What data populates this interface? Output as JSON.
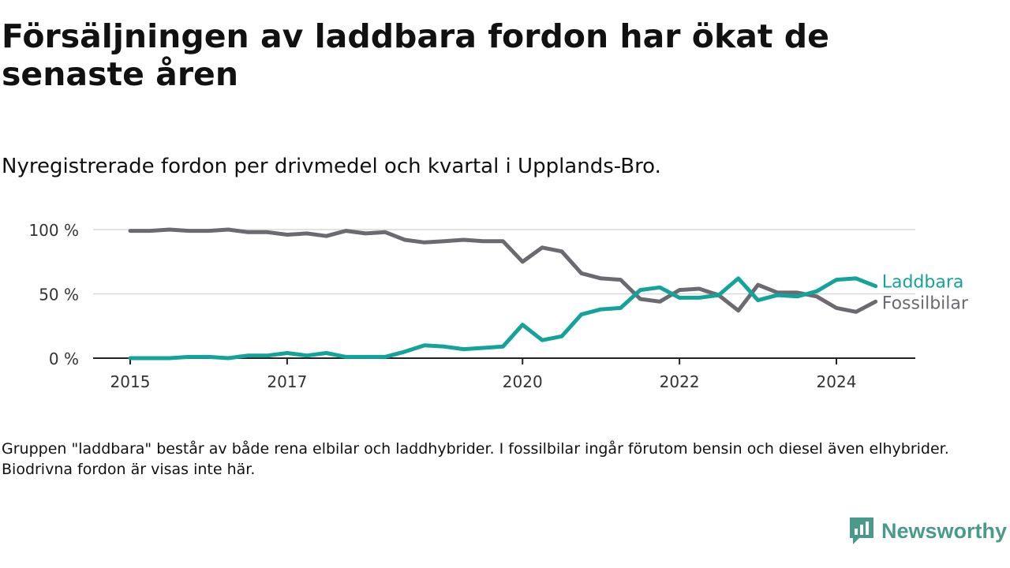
{
  "title": "Försäljningen av laddbara fordon har ökat de senaste åren",
  "subtitle": "Nyregistrerade fordon per drivmedel och kvartal i Upplands-Bro.",
  "footnote": "Gruppen \"laddbara\" består av både rena elbilar och laddhybrider. I fossilbilar ingår förutom bensin och diesel även elhybrider. Biodrivna fordon är visas inte här.",
  "brand": {
    "name": "Newsworthy",
    "logo_icon": "newsworthy-logo-icon"
  },
  "colors": {
    "laddbara": "#14a39a",
    "fossilbilar": "#6b6a70",
    "grid": "#d9d9d9",
    "axis": "#222222",
    "brand": "#4a9a8c"
  },
  "chart_data": {
    "type": "line",
    "title": "Försäljningen av laddbara fordon har ökat de senaste åren",
    "xlabel": "",
    "ylabel": "",
    "ylim": [
      0,
      100
    ],
    "yticks": [
      0,
      50,
      100
    ],
    "ytick_labels": [
      "0 %",
      "50 %",
      "100 %"
    ],
    "xticks": [
      2015,
      2017,
      2020,
      2022,
      2024
    ],
    "xtick_labels": [
      "2015",
      "2017",
      "2020",
      "2022",
      "2024"
    ],
    "grid": true,
    "x": [
      2015.0,
      2015.25,
      2015.5,
      2015.75,
      2016.0,
      2016.25,
      2016.5,
      2016.75,
      2017.0,
      2017.25,
      2017.5,
      2017.75,
      2018.0,
      2018.25,
      2018.5,
      2018.75,
      2019.0,
      2019.25,
      2019.5,
      2019.75,
      2020.0,
      2020.25,
      2020.5,
      2020.75,
      2021.0,
      2021.25,
      2021.5,
      2021.75,
      2022.0,
      2022.25,
      2022.5,
      2022.75,
      2023.0,
      2023.25,
      2023.5,
      2023.75,
      2024.0,
      2024.25,
      2024.5
    ],
    "series": [
      {
        "name": "Laddbara",
        "label": "Laddbara",
        "values": [
          0,
          0,
          0,
          1,
          1,
          0,
          2,
          2,
          4,
          2,
          4,
          1,
          1,
          1,
          5,
          10,
          9,
          7,
          8,
          9,
          26,
          14,
          17,
          34,
          38,
          39,
          53,
          55,
          47,
          47,
          49,
          62,
          45,
          49,
          48,
          52,
          61,
          62,
          56
        ]
      },
      {
        "name": "Fossilbilar",
        "label": "Fossilbilar",
        "values": [
          99,
          99,
          100,
          99,
          99,
          100,
          98,
          98,
          96,
          97,
          95,
          99,
          97,
          98,
          92,
          90,
          91,
          92,
          91,
          91,
          75,
          86,
          83,
          66,
          62,
          61,
          46,
          44,
          53,
          54,
          49,
          37,
          57,
          51,
          51,
          48,
          39,
          36,
          44
        ]
      }
    ]
  }
}
